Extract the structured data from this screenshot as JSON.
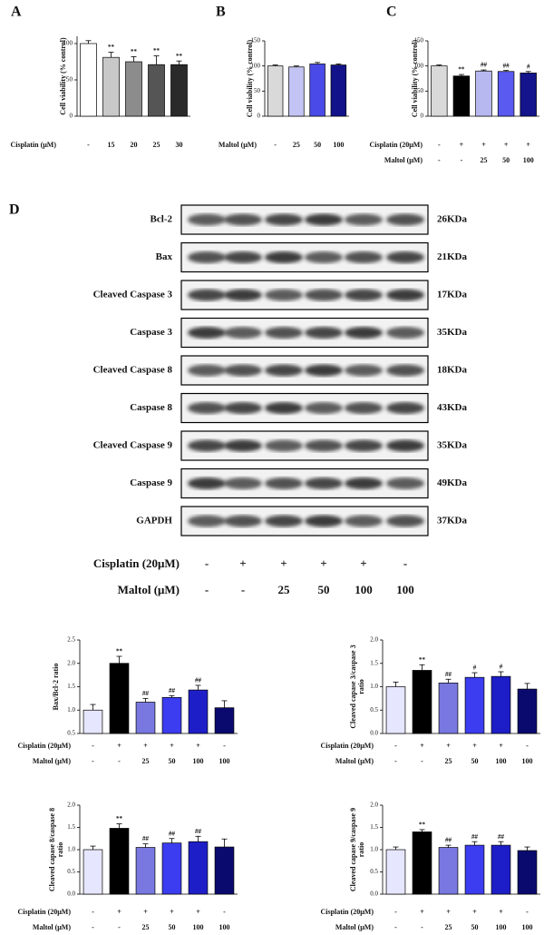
{
  "chart_data": [
    {
      "type": "bar",
      "panel": "A",
      "y_label": [
        "Cell viability (% control)"
      ],
      "values": [
        100,
        81,
        75,
        71,
        71
      ],
      "errors": [
        4,
        7,
        7,
        12,
        5
      ],
      "annotations": [
        null,
        "**",
        "**",
        "**",
        "**"
      ],
      "colors": [
        "#ffffff",
        "#c8c8c8",
        "#8c8c8c",
        "#555555",
        "#2a2a2a"
      ],
      "ylim": [
        0,
        110
      ],
      "yticks": [
        0,
        50,
        100
      ],
      "treatments": [
        {
          "label": "Cisplatin (μM)",
          "values": [
            "-",
            "15",
            "20",
            "25",
            "30"
          ]
        }
      ]
    },
    {
      "type": "bar",
      "panel": "B",
      "y_label": [
        "Cell viability (% control)"
      ],
      "values": [
        100,
        98,
        104,
        102
      ],
      "errors": [
        2,
        2,
        3,
        2
      ],
      "annotations": [
        null,
        null,
        null,
        null
      ],
      "colors": [
        "#d9d9d9",
        "#c4c4f4",
        "#4a4ae8",
        "#12128a"
      ],
      "ylim": [
        0,
        150
      ],
      "yticks": [
        0,
        50,
        100,
        150
      ],
      "treatments": [
        {
          "label": "Maltol (μM)",
          "values": [
            "-",
            "25",
            "50",
            "100"
          ]
        }
      ]
    },
    {
      "type": "bar",
      "panel": "C",
      "y_label": [
        "Cell viability (% control)"
      ],
      "values": [
        100,
        80,
        90,
        89,
        86
      ],
      "errors": [
        2,
        3,
        2,
        2,
        3
      ],
      "annotations": [
        null,
        "**",
        "##",
        "##",
        "#"
      ],
      "colors": [
        "#d9d9d9",
        "#000000",
        "#b8b8f0",
        "#5a5af0",
        "#14148c"
      ],
      "ylim": [
        0,
        150
      ],
      "yticks": [
        0,
        50,
        100,
        150
      ],
      "treatments": [
        {
          "label": "Cisplatin (20μM)",
          "values": [
            "-",
            "+",
            "+",
            "+",
            "+"
          ]
        },
        {
          "label": "Maltol (μM)",
          "values": [
            "-",
            "-",
            "25",
            "50",
            "100"
          ]
        }
      ]
    },
    {
      "type": "bar",
      "y_label": [
        "Bax/Bcl-2 ratio"
      ],
      "values": [
        1.0,
        2.0,
        1.17,
        1.27,
        1.43,
        1.05
      ],
      "errors": [
        0.12,
        0.15,
        0.08,
        0.04,
        0.1,
        0.15
      ],
      "annotations": [
        null,
        "**",
        "##",
        "##",
        "##",
        null
      ],
      "colors": [
        "#e6e6ff",
        "#000000",
        "#7878e0",
        "#3c3cf0",
        "#1e1ec8",
        "#0a0a6e"
      ],
      "ylim": [
        0.5,
        2.5
      ],
      "yticks": [
        0.5,
        {
          "value": 1,
          "label": "1.0"
        },
        1.5,
        {
          "value": 2,
          "label": "2.0"
        },
        2.5
      ],
      "treatments": [
        {
          "label": "Cisplatin (20μM)",
          "values": [
            "-",
            "+",
            "+",
            "+",
            "+",
            "-"
          ]
        },
        {
          "label": "Maltol (μM)",
          "values": [
            "-",
            "-",
            "25",
            "50",
            "100",
            "100"
          ]
        }
      ]
    },
    {
      "type": "bar",
      "y_label": [
        "Cleaved capase 3/caspase 3",
        "ratio"
      ],
      "values": [
        1.0,
        1.35,
        1.08,
        1.2,
        1.22,
        0.95
      ],
      "errors": [
        0.1,
        0.12,
        0.08,
        0.1,
        0.1,
        0.12
      ],
      "annotations": [
        null,
        "**",
        "##",
        "#",
        "#",
        null
      ],
      "colors": [
        "#e6e6ff",
        "#000000",
        "#7878e0",
        "#3c3cf0",
        "#1e1ec8",
        "#0a0a6e"
      ],
      "ylim": [
        0,
        2
      ],
      "yticks": [
        {
          "value": 0,
          "label": "0.0"
        },
        0.5,
        {
          "value": 1,
          "label": "1.0"
        },
        1.5,
        {
          "value": 2,
          "label": "2.0"
        }
      ],
      "treatments": [
        {
          "label": "Cisplatin (20μM)",
          "values": [
            "-",
            "+",
            "+",
            "+",
            "+",
            "-"
          ]
        },
        {
          "label": "Maltol (μM)",
          "values": [
            "-",
            "-",
            "25",
            "50",
            "100",
            "100"
          ]
        }
      ]
    },
    {
      "type": "bar",
      "y_label": [
        "Cleaved capase 8/caspase 8",
        "ratio"
      ],
      "values": [
        1.0,
        1.48,
        1.05,
        1.15,
        1.18,
        1.06
      ],
      "errors": [
        0.08,
        0.1,
        0.08,
        0.1,
        0.12,
        0.18
      ],
      "annotations": [
        null,
        "**",
        "##",
        "##",
        "##",
        null
      ],
      "colors": [
        "#e6e6ff",
        "#000000",
        "#7878e0",
        "#3c3cf0",
        "#1e1ec8",
        "#0a0a6e"
      ],
      "ylim": [
        0,
        2
      ],
      "yticks": [
        {
          "value": 0,
          "label": "0.0"
        },
        0.5,
        {
          "value": 1,
          "label": "1.0"
        },
        1.5,
        {
          "value": 2,
          "label": "2.0"
        }
      ],
      "treatments": [
        {
          "label": "Cisplatin (20μM)",
          "values": [
            "-",
            "+",
            "+",
            "+",
            "+",
            "-"
          ]
        },
        {
          "label": "Maltol (μM)",
          "values": [
            "-",
            "-",
            "25",
            "50",
            "100",
            "100"
          ]
        }
      ]
    },
    {
      "type": "bar",
      "y_label": [
        "Cleaved capase 9/caspase 9",
        "ratio"
      ],
      "values": [
        1.0,
        1.4,
        1.05,
        1.1,
        1.1,
        0.98
      ],
      "errors": [
        0.06,
        0.05,
        0.05,
        0.08,
        0.08,
        0.08
      ],
      "annotations": [
        null,
        "**",
        "##",
        "##",
        "##",
        null
      ],
      "colors": [
        "#e6e6ff",
        "#000000",
        "#7878e0",
        "#3c3cf0",
        "#1e1ec8",
        "#0a0a6e"
      ],
      "ylim": [
        0,
        2
      ],
      "yticks": [
        {
          "value": 0,
          "label": "0.0"
        },
        0.5,
        {
          "value": 1,
          "label": "1.0"
        },
        1.5,
        {
          "value": 2,
          "label": "2.0"
        }
      ],
      "treatments": [
        {
          "label": "Cisplatin (20μM)",
          "values": [
            "-",
            "+",
            "+",
            "+",
            "+",
            "-"
          ]
        },
        {
          "label": "Maltol (μM)",
          "values": [
            "-",
            "-",
            "25",
            "50",
            "100",
            "100"
          ]
        }
      ]
    }
  ],
  "blot": {
    "panel": "D",
    "rows": [
      {
        "name": "Bcl-2",
        "size": "26KDa"
      },
      {
        "name": "Bax",
        "size": "21KDa"
      },
      {
        "name": "Cleaved Caspase 3",
        "size": "17KDa"
      },
      {
        "name": "Caspase 3",
        "size": "35KDa"
      },
      {
        "name": "Cleaved Caspase 8",
        "size": "18KDa"
      },
      {
        "name": "Caspase 8",
        "size": "43KDa"
      },
      {
        "name": "Cleaved Caspase 9",
        "size": "35KDa"
      },
      {
        "name": "Caspase 9",
        "size": "49KDa"
      },
      {
        "name": "GAPDH",
        "size": "37KDa"
      }
    ],
    "treatments": [
      {
        "label": "Cisplatin (20μM)",
        "values": [
          "-",
          "+",
          "+",
          "+",
          "+",
          "-"
        ]
      },
      {
        "label": "Maltol (μM)",
        "values": [
          "-",
          "-",
          "25",
          "50",
          "100",
          "100"
        ]
      }
    ]
  }
}
